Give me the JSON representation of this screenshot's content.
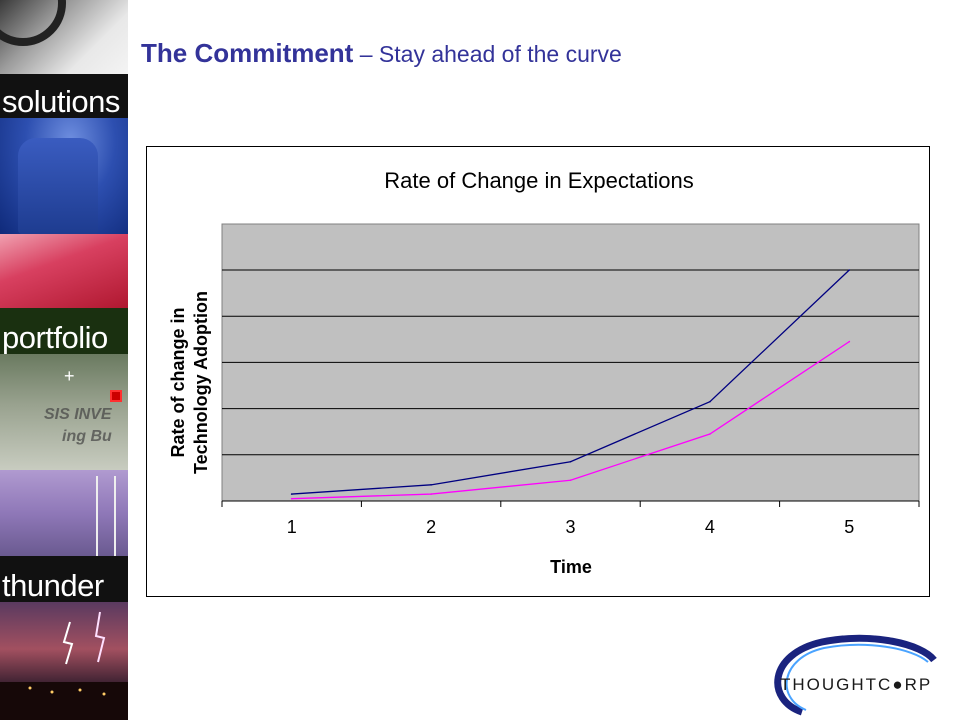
{
  "slide": {
    "title_main": "The Commitment",
    "title_sub": " – Stay ahead of the curve"
  },
  "sidebar": {
    "words": [
      "solutions",
      "portfolio",
      "thunder"
    ],
    "sign_text": [
      "SIS INVE",
      "ing Bu"
    ]
  },
  "logo": {
    "text": "THOUGHTC●RP"
  },
  "chart_data": {
    "type": "line",
    "title": "Rate of Change in Expectations",
    "xlabel": "Time",
    "ylabel": [
      "Rate of change in",
      "Technology Adoption"
    ],
    "categories": [
      "1",
      "2",
      "3",
      "4",
      "5"
    ],
    "ylim": [
      0,
      5
    ],
    "y_gridlines": [
      1,
      2,
      3,
      4,
      5
    ],
    "y_tick_labels": false,
    "grid": true,
    "legend": "none",
    "plot_background": "#c0c0c0",
    "series": [
      {
        "values": [
          0.15,
          0.35,
          0.85,
          2.15,
          5.0
        ],
        "color": "#000080"
      },
      {
        "values": [
          0.05,
          0.15,
          0.45,
          1.45,
          3.45
        ],
        "color": "#ff00ff"
      }
    ]
  }
}
